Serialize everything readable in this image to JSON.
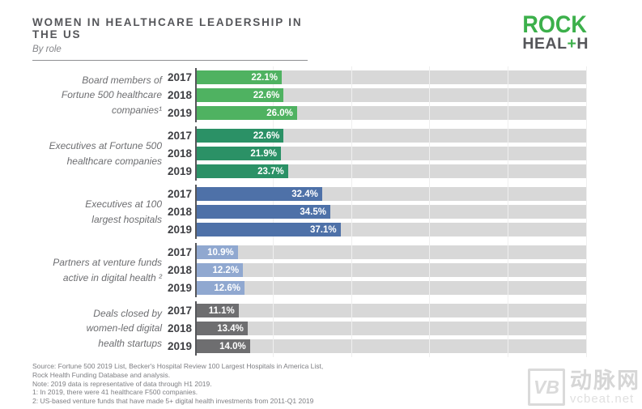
{
  "header": {
    "title": "WOMEN IN HEALTHCARE LEADERSHIP IN THE US",
    "subtitle": "By role"
  },
  "logo": {
    "rock": "ROCK",
    "heal_pre": "HEAL",
    "heal_plus": "+",
    "heal_post": "H",
    "green": "#3cb04b",
    "gray": "#55565a"
  },
  "chart_data": {
    "type": "bar",
    "orientation": "horizontal",
    "unit": "%",
    "xlim": [
      0,
      100
    ],
    "gridlines_pct": [
      20,
      40,
      60,
      80,
      100
    ],
    "grid_on": true,
    "track_color": "#d8d8d8",
    "axis_color": "#55565a",
    "years": [
      "2017",
      "2018",
      "2019"
    ],
    "groups": [
      {
        "label_lines": [
          "Board members of",
          "Fortune 500 healthcare",
          "companies¹"
        ],
        "color": "#4fb261",
        "values": [
          22.1,
          22.6,
          26.0
        ],
        "value_labels": [
          "22.1%",
          "22.6%",
          "26.0%"
        ]
      },
      {
        "label_lines": [
          "Executives at Fortune 500",
          "healthcare companies"
        ],
        "color": "#2b9166",
        "values": [
          22.6,
          21.9,
          23.7
        ],
        "value_labels": [
          "22.6%",
          "21.9%",
          "23.7%"
        ]
      },
      {
        "label_lines": [
          "Executives at 100",
          "largest hospitals"
        ],
        "color": "#4e71a8",
        "values": [
          32.4,
          34.5,
          37.1
        ],
        "value_labels": [
          "32.4%",
          "34.5%",
          "37.1%"
        ]
      },
      {
        "label_lines": [
          "Partners at venture funds",
          "active in digital health ²"
        ],
        "color": "#90a8d0",
        "values": [
          10.9,
          12.2,
          12.6
        ],
        "value_labels": [
          "10.9%",
          "12.2%",
          "12.6%"
        ]
      },
      {
        "label_lines": [
          "Deals closed by",
          "women-led digital",
          "health startups"
        ],
        "color": "#6e6e70",
        "values": [
          11.1,
          13.4,
          14.0
        ],
        "value_labels": [
          "11.1%",
          "13.4%",
          "14.0%"
        ]
      }
    ]
  },
  "footer": {
    "lines": [
      "Source: Fortune 500 2019 List, Becker's Hospital Review 100 Largest Hospitals in America List,",
      "Rock Health Funding Database and analysis.",
      "Note: 2019 data is representative of data through H1 2019.",
      "1: In 2019, there were 41 healthcare F500 companies.",
      "2: US-based venture funds that have made 5+ digital health investments from 2011-Q1 2019"
    ]
  },
  "watermark": {
    "vb": "VB",
    "cn": "动脉网",
    "site": "vcbeat.net"
  }
}
